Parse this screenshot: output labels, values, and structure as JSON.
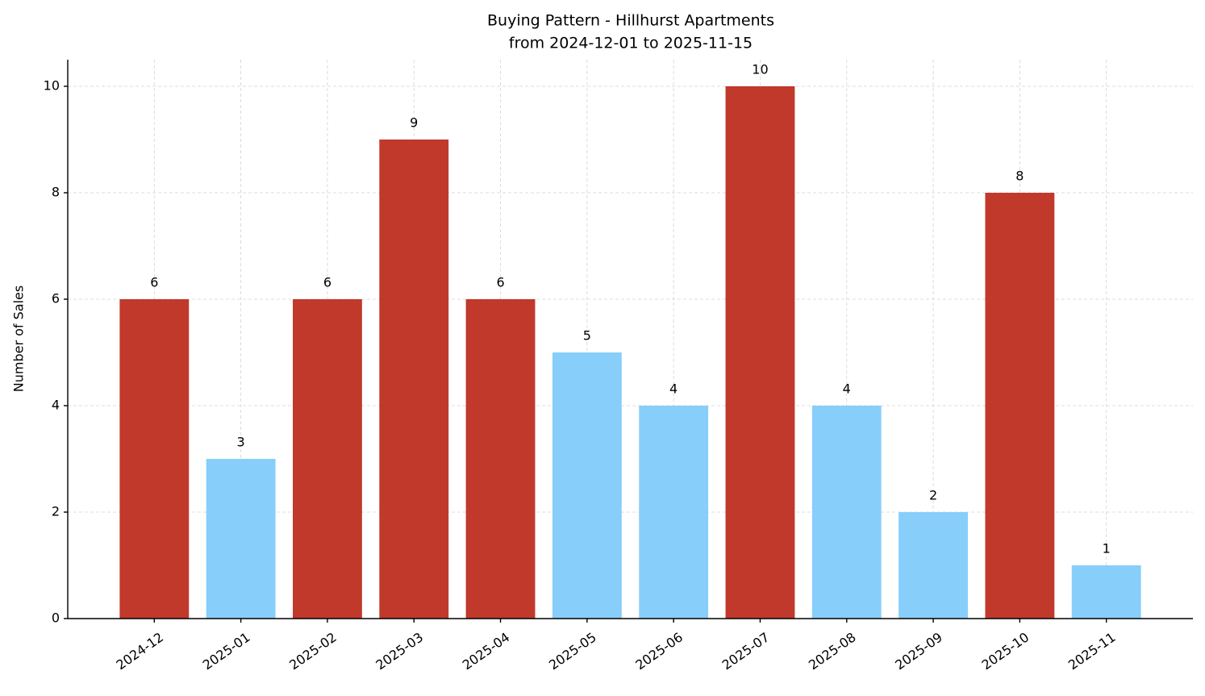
{
  "chart_data": {
    "type": "bar",
    "title": "Buying Pattern - Hillhurst Apartments",
    "subtitle": "from 2024-12-01 to 2025-11-15",
    "y_label": "Number of Sales",
    "categories": [
      "2024-12",
      "2025-01",
      "2025-02",
      "2025-03",
      "2025-04",
      "2025-05",
      "2025-06",
      "2025-07",
      "2025-08",
      "2025-09",
      "2025-10",
      "2025-11"
    ],
    "values": [
      6,
      3,
      6,
      9,
      6,
      5,
      4,
      10,
      4,
      2,
      8,
      1
    ],
    "colors": [
      "#c0392b",
      "#87cefa",
      "#c0392b",
      "#c0392b",
      "#c0392b",
      "#87cefa",
      "#87cefa",
      "#c0392b",
      "#87cefa",
      "#87cefa",
      "#c0392b",
      "#87cefa"
    ],
    "ylim": [
      0,
      10.5
    ],
    "yticks": [
      0,
      2,
      4,
      6,
      8,
      10
    ],
    "grid": true
  }
}
